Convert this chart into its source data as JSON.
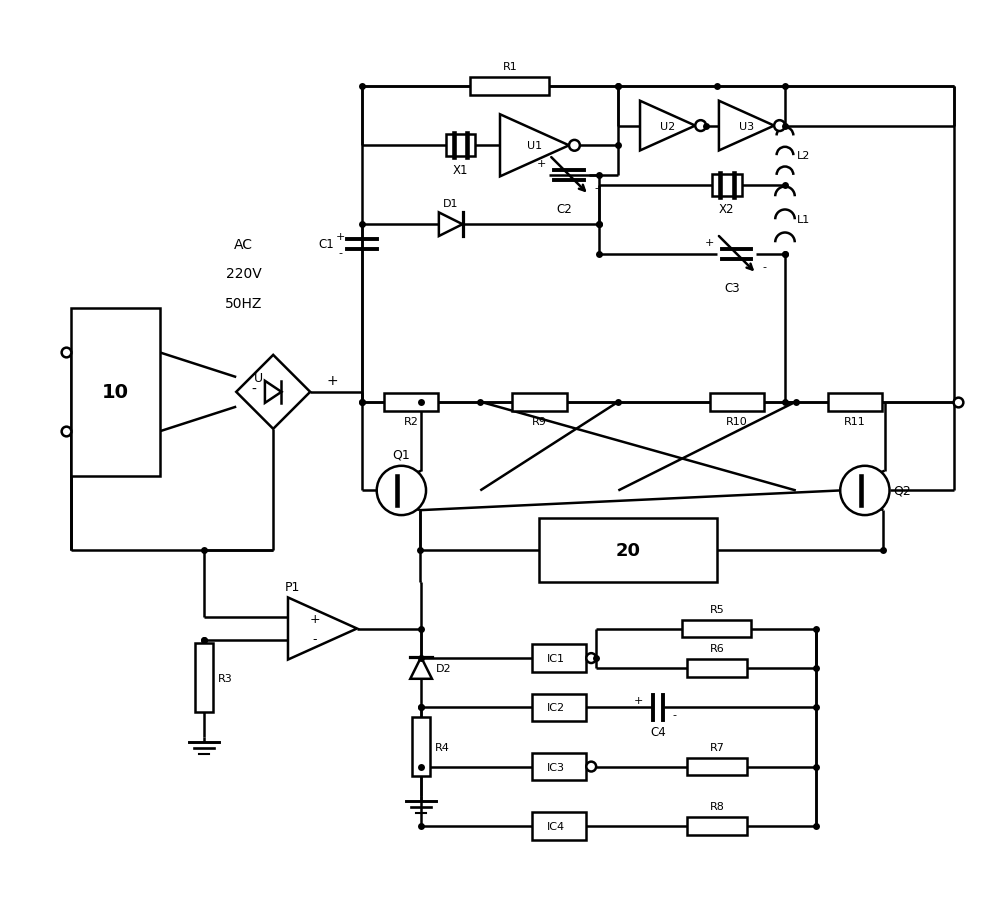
{
  "bg": "#ffffff",
  "lc": "#000000",
  "lw": 1.8,
  "figsize": [
    10.0,
    9.04
  ],
  "dpi": 100,
  "xlim": [
    0,
    100
  ],
  "ylim": [
    0,
    90
  ]
}
